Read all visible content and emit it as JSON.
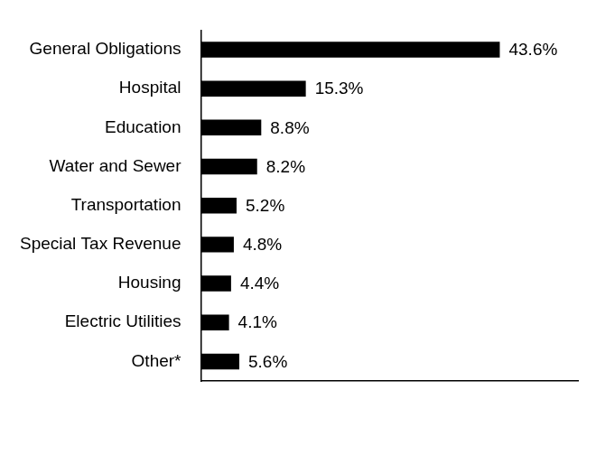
{
  "chart_data": {
    "type": "bar",
    "orientation": "horizontal",
    "categories": [
      "General Obligations",
      "Hospital",
      "Education",
      "Water and Sewer",
      "Transportation",
      "Special Tax Revenue",
      "Housing",
      "Electric Utilities",
      "Other*"
    ],
    "values": [
      43.6,
      15.3,
      8.8,
      8.2,
      5.2,
      4.8,
      4.4,
      4.1,
      5.6
    ],
    "value_labels": [
      "43.6%",
      "15.3%",
      "8.8%",
      "8.2%",
      "5.2%",
      "4.8%",
      "4.4%",
      "4.1%",
      "5.6%"
    ],
    "color": "#000000",
    "xlim": [
      0,
      55
    ],
    "grid": false,
    "data_labels": true,
    "tick_labels": "y"
  }
}
